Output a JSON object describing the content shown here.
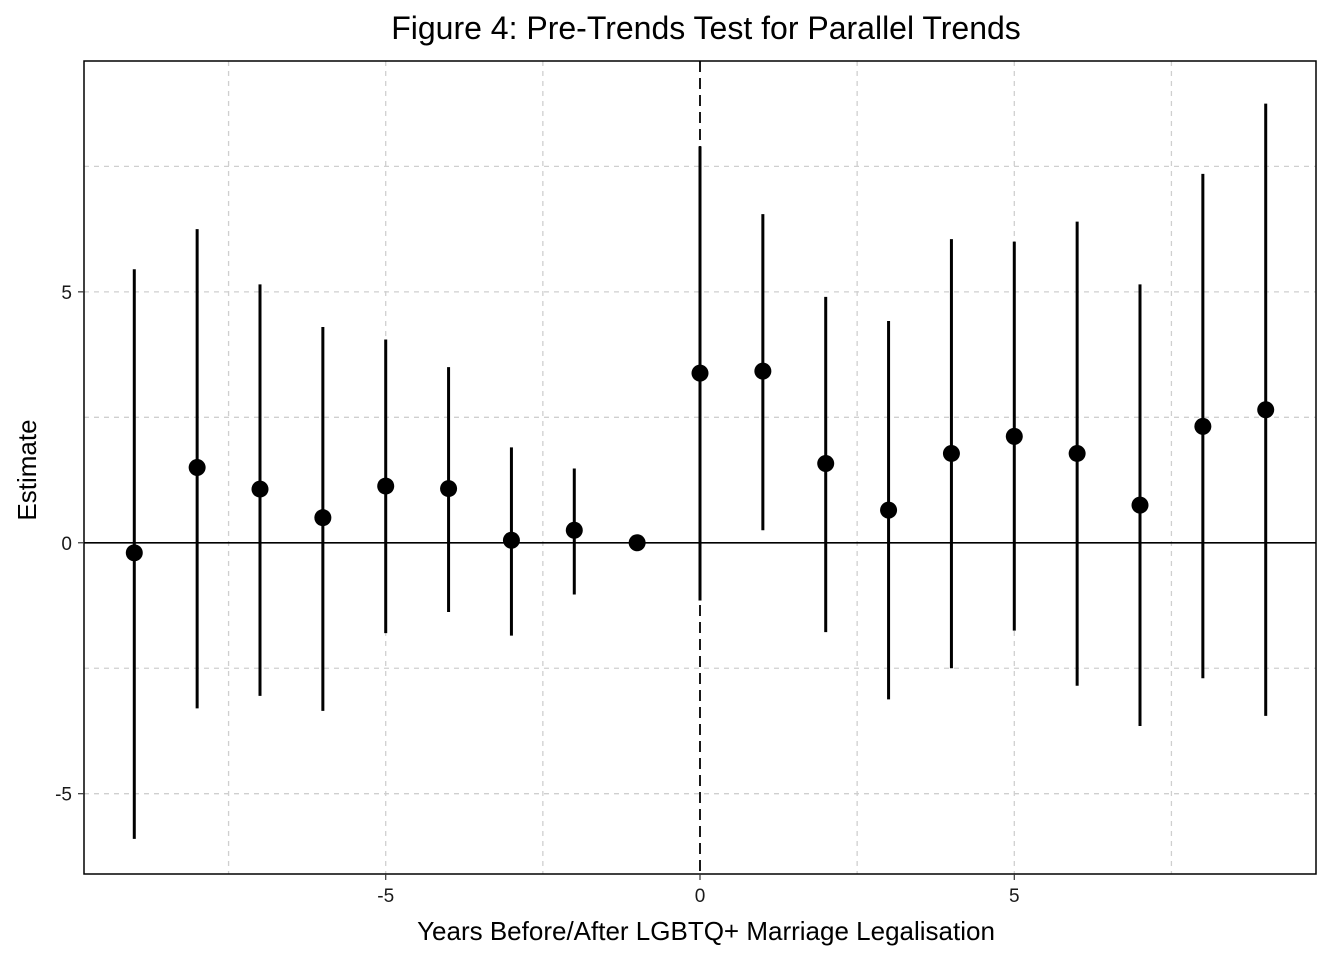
{
  "chart_data": {
    "type": "scatter",
    "subtype": "coefficient-plot-with-error-bars",
    "title": "Figure 4: Pre-Trends Test for Parallel Trends",
    "xlabel": "Years Before/After LGBTQ+ Marriage Legalisation",
    "ylabel": "Estimate",
    "xlim": [
      -9.8,
      9.8
    ],
    "ylim": [
      -6.6,
      9.6
    ],
    "x_ticks": [
      -5,
      0,
      5
    ],
    "x_tick_labels": [
      "-5",
      "0",
      "5"
    ],
    "y_ticks": [
      -5,
      0,
      5
    ],
    "y_tick_labels": [
      "-5",
      "0",
      "5"
    ],
    "x_grid": [
      -7.5,
      -5,
      -2.5,
      0,
      2.5,
      5,
      7.5
    ],
    "y_grid": [
      -5,
      -2.5,
      0,
      2.5,
      5,
      7.5
    ],
    "grid": true,
    "reference_line_y": 0,
    "event_line_x": 0,
    "series": [
      {
        "points": [
          {
            "x": -9,
            "estimate": -0.2,
            "ci_low": -5.9,
            "ci_high": 5.45
          },
          {
            "x": -8,
            "estimate": 1.5,
            "ci_low": -3.3,
            "ci_high": 6.25
          },
          {
            "x": -7,
            "estimate": 1.07,
            "ci_low": -3.05,
            "ci_high": 5.15
          },
          {
            "x": -6,
            "estimate": 0.5,
            "ci_low": -3.35,
            "ci_high": 4.3
          },
          {
            "x": -5,
            "estimate": 1.13,
            "ci_low": -1.8,
            "ci_high": 4.05
          },
          {
            "x": -4,
            "estimate": 1.08,
            "ci_low": -1.38,
            "ci_high": 3.5
          },
          {
            "x": -3,
            "estimate": 0.05,
            "ci_low": -1.85,
            "ci_high": 1.9
          },
          {
            "x": -2,
            "estimate": 0.25,
            "ci_low": -1.03,
            "ci_high": 1.48
          },
          {
            "x": -1,
            "estimate": 0.0,
            "ci_low": 0.0,
            "ci_high": 0.0
          },
          {
            "x": 0,
            "estimate": 3.38,
            "ci_low": -1.15,
            "ci_high": 7.9
          },
          {
            "x": 1,
            "estimate": 3.42,
            "ci_low": 0.25,
            "ci_high": 6.55
          },
          {
            "x": 2,
            "estimate": 1.58,
            "ci_low": -1.78,
            "ci_high": 4.9
          },
          {
            "x": 3,
            "estimate": 0.65,
            "ci_low": -3.12,
            "ci_high": 4.42
          },
          {
            "x": 4,
            "estimate": 1.78,
            "ci_low": -2.5,
            "ci_high": 6.05
          },
          {
            "x": 5,
            "estimate": 2.12,
            "ci_low": -1.75,
            "ci_high": 6.0
          },
          {
            "x": 6,
            "estimate": 1.78,
            "ci_low": -2.85,
            "ci_high": 6.4
          },
          {
            "x": 7,
            "estimate": 0.75,
            "ci_low": -3.65,
            "ci_high": 5.15
          },
          {
            "x": 8,
            "estimate": 2.32,
            "ci_low": -2.7,
            "ci_high": 7.35
          },
          {
            "x": 9,
            "estimate": 2.65,
            "ci_low": -3.45,
            "ci_high": 8.75
          }
        ]
      }
    ],
    "colors": {
      "points": "#000000",
      "grid": "#cfcfcf",
      "background": "#ffffff"
    }
  }
}
